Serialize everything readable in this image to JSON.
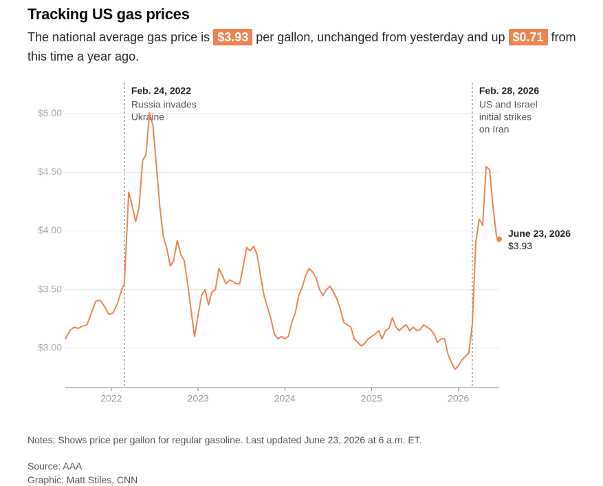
{
  "header": {
    "title": "Tracking US gas prices",
    "subtitle": {
      "before": "The national average gas price is",
      "price": "$3.93",
      "middle": "per gallon, unchanged from yesterday and up",
      "change": "$0.71",
      "after": "from this time a year ago."
    }
  },
  "chart_data": {
    "type": "line",
    "color": "#ee8350",
    "x": [
      2021.47,
      2021.52,
      2021.57,
      2021.62,
      2021.67,
      2021.72,
      2021.77,
      2021.82,
      2021.87,
      2021.92,
      2021.97,
      2022.02,
      2022.07,
      2022.12,
      2022.15,
      2022.18,
      2022.2,
      2022.24,
      2022.28,
      2022.32,
      2022.36,
      2022.4,
      2022.44,
      2022.48,
      2022.52,
      2022.56,
      2022.6,
      2022.64,
      2022.68,
      2022.72,
      2022.76,
      2022.8,
      2022.84,
      2022.88,
      2022.92,
      2022.96,
      2023.0,
      2023.04,
      2023.08,
      2023.12,
      2023.16,
      2023.2,
      2023.24,
      2023.28,
      2023.32,
      2023.36,
      2023.4,
      2023.44,
      2023.48,
      2023.52,
      2023.56,
      2023.6,
      2023.64,
      2023.68,
      2023.72,
      2023.76,
      2023.8,
      2023.84,
      2023.88,
      2023.92,
      2023.96,
      2024.0,
      2024.04,
      2024.08,
      2024.12,
      2024.16,
      2024.2,
      2024.24,
      2024.28,
      2024.32,
      2024.36,
      2024.4,
      2024.44,
      2024.48,
      2024.52,
      2024.56,
      2024.6,
      2024.64,
      2024.68,
      2024.72,
      2024.76,
      2024.8,
      2024.84,
      2024.88,
      2024.92,
      2024.96,
      2025.0,
      2025.04,
      2025.08,
      2025.12,
      2025.16,
      2025.2,
      2025.24,
      2025.28,
      2025.32,
      2025.36,
      2025.4,
      2025.44,
      2025.48,
      2025.52,
      2025.56,
      2025.6,
      2025.64,
      2025.68,
      2025.72,
      2025.76,
      2025.8,
      2025.84,
      2025.88,
      2025.92,
      2025.96,
      2026.0,
      2026.04,
      2026.08,
      2026.12,
      2026.16,
      2026.2,
      2026.24,
      2026.28,
      2026.32,
      2026.36,
      2026.4,
      2026.44,
      2026.47
    ],
    "values": [
      3.08,
      3.15,
      3.18,
      3.17,
      3.19,
      3.2,
      3.3,
      3.4,
      3.41,
      3.36,
      3.29,
      3.3,
      3.38,
      3.5,
      3.55,
      4.0,
      4.33,
      4.22,
      4.08,
      4.2,
      4.6,
      4.65,
      5.01,
      4.9,
      4.55,
      4.2,
      3.95,
      3.85,
      3.7,
      3.75,
      3.92,
      3.8,
      3.75,
      3.55,
      3.32,
      3.1,
      3.28,
      3.45,
      3.5,
      3.37,
      3.48,
      3.5,
      3.68,
      3.62,
      3.55,
      3.58,
      3.57,
      3.55,
      3.55,
      3.7,
      3.86,
      3.83,
      3.87,
      3.8,
      3.62,
      3.45,
      3.35,
      3.25,
      3.12,
      3.08,
      3.1,
      3.08,
      3.1,
      3.22,
      3.3,
      3.45,
      3.52,
      3.62,
      3.68,
      3.65,
      3.6,
      3.5,
      3.45,
      3.5,
      3.53,
      3.48,
      3.42,
      3.33,
      3.22,
      3.2,
      3.18,
      3.08,
      3.05,
      3.02,
      3.04,
      3.08,
      3.1,
      3.12,
      3.15,
      3.08,
      3.15,
      3.17,
      3.26,
      3.18,
      3.15,
      3.18,
      3.2,
      3.15,
      3.18,
      3.15,
      3.16,
      3.2,
      3.18,
      3.16,
      3.12,
      3.05,
      3.08,
      3.08,
      2.95,
      2.88,
      2.82,
      2.85,
      2.9,
      2.93,
      2.96,
      3.2,
      3.9,
      4.1,
      4.05,
      4.55,
      4.52,
      4.2,
      3.95,
      3.93
    ],
    "xlim": [
      2021.47,
      2026.47
    ],
    "xticks": [
      2022,
      2023,
      2024,
      2025,
      2026
    ],
    "ylim": [
      2.665,
      5.265
    ],
    "yticks": [
      {
        "value": 3,
        "label": "$3.00"
      },
      {
        "value": 3.5,
        "label": "$3.50"
      },
      {
        "value": 4,
        "label": "$4.00"
      },
      {
        "value": 4.5,
        "label": "$4.50"
      },
      {
        "value": 5,
        "label": "$5.00"
      }
    ],
    "grid": true,
    "events": [
      {
        "x": 2022.15,
        "date": "Feb. 24, 2022",
        "lines": [
          "Russia invades",
          "Ukraine"
        ]
      },
      {
        "x": 2026.16,
        "date": "Feb. 28, 2026",
        "lines": [
          "US and Israel",
          "initial strikes",
          "on Iran"
        ]
      }
    ],
    "end_label": {
      "date": "June 23, 2026",
      "value": "$3.93"
    }
  },
  "footer": {
    "notes": "Notes: Shows price per gallon for regular gasoline. Last updated June 23, 2026 at 6 a.m. ET.",
    "source": "Source: AAA",
    "credit": "Graphic: Matt Stiles, CNN"
  }
}
